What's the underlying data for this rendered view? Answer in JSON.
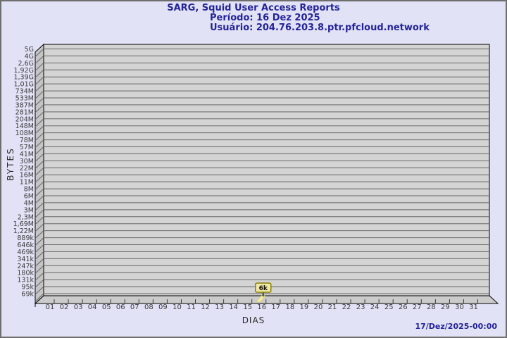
{
  "header": {
    "title": "SARG, Squid User Access Reports",
    "period": "Período: 16 Dez 2025",
    "user": "Usuário: 204.76.203.8.ptr.pfcloud.network"
  },
  "footer": {
    "generated": "17/Dez/2025-00:00"
  },
  "chart_data": {
    "type": "bar",
    "title": "SARG, Squid User Access Reports",
    "xlabel": "DIAS",
    "ylabel": "BYTES",
    "y_scale": "log",
    "y_ticks": [
      "5G",
      "4G",
      "2,6G",
      "1,92G",
      "1,39G",
      "1,01G",
      "734M",
      "533M",
      "387M",
      "281M",
      "204M",
      "148M",
      "108M",
      "78M",
      "57M",
      "41M",
      "30M",
      "22M",
      "16M",
      "11M",
      "8M",
      "6M",
      "4M",
      "3M",
      "2,3M",
      "1,69M",
      "1,22M",
      "889k",
      "646k",
      "469k",
      "341k",
      "247k",
      "180k",
      "131k",
      "95k",
      "69k"
    ],
    "categories": [
      "01",
      "02",
      "03",
      "04",
      "05",
      "06",
      "07",
      "08",
      "09",
      "10",
      "11",
      "12",
      "13",
      "14",
      "15",
      "16",
      "17",
      "18",
      "19",
      "20",
      "21",
      "22",
      "23",
      "24",
      "25",
      "26",
      "27",
      "28",
      "29",
      "30",
      "31"
    ],
    "values": [
      0,
      0,
      0,
      0,
      0,
      0,
      0,
      0,
      0,
      0,
      0,
      0,
      0,
      0,
      0,
      6000,
      0,
      0,
      0,
      0,
      0,
      0,
      0,
      0,
      0,
      0,
      0,
      0,
      0,
      0,
      0
    ],
    "annotations": [
      {
        "category": "16",
        "label": "6k"
      }
    ],
    "legend": "none",
    "grid": "horizontal",
    "colors": {
      "page_background": "#E2E2F6",
      "title_text": "#24249A",
      "plot_background": "#D4D4D4",
      "wall": "#C4C4C4",
      "floor": "#CBCBCB",
      "gridline": "#666666",
      "axis": "#000000",
      "tick_text": "#3A3A3A",
      "bar": "#F1EBA5",
      "bar_edge": "#C8BC50",
      "flag_fill": "#EEE8AA",
      "flag_border": "#8B8000",
      "flag_text": "#111100"
    }
  }
}
